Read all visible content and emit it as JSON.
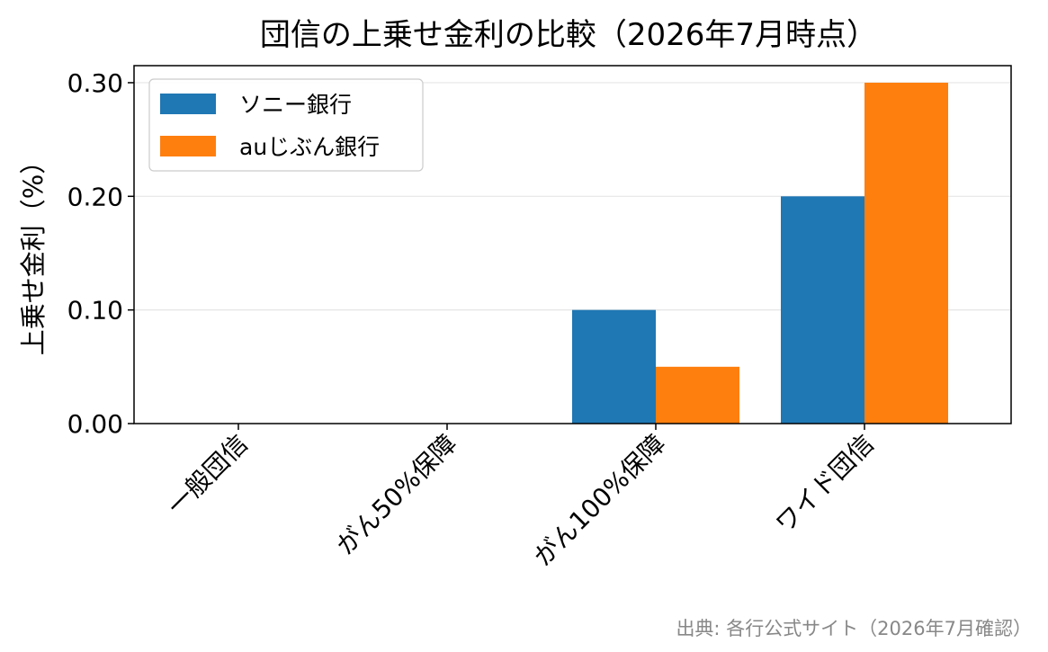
{
  "chart_data": {
    "type": "bar",
    "title": "団信の上乗せ金利の比較（2026年7月時点）",
    "ylabel": "上乗せ金利（%）",
    "xlabel": "",
    "categories": [
      "一般団信",
      "がん50%保障",
      "がん100%保障",
      "ワイド団信"
    ],
    "series": [
      {
        "name": "ソニー銀行",
        "values": [
          0,
          0,
          0.1,
          0.2
        ],
        "color": "#1f77b4"
      },
      {
        "name": "auじぶん銀行",
        "values": [
          0,
          0,
          0.05,
          0.3
        ],
        "color": "#ff7f0e"
      }
    ],
    "ylim": [
      0,
      0.315
    ],
    "yticks": [
      "0.00",
      "0.10",
      "0.20",
      "0.30"
    ],
    "ytick_values": [
      0,
      0.1,
      0.2,
      0.3
    ],
    "grid": "y",
    "legend_position": "top-left"
  },
  "source_note": "出典: 各行公式サイト（2026年7月確認）"
}
